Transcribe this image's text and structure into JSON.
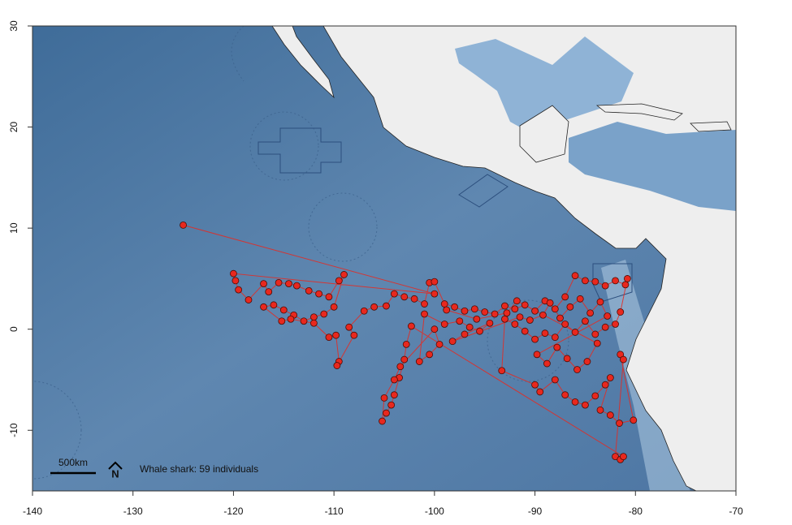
{
  "chart_data": {
    "type": "scatter",
    "xlim": [
      -140,
      -70
    ],
    "ylim": [
      -16,
      30
    ],
    "xticks": [
      -140,
      -130,
      -120,
      -110,
      -100,
      -90,
      -80,
      -70
    ],
    "yticks": [
      -10,
      0,
      10,
      20,
      30
    ],
    "annotations": {
      "scale": "500km",
      "north": "N",
      "label": "Whale shark: 59 individuals"
    },
    "series": [
      {
        "color": "#e8281e",
        "line": true,
        "x": [
          -125,
          -100,
          -120,
          -119.8,
          -119.5,
          -118.5,
          -117,
          -116.5,
          -115.5,
          -114.5,
          -113.7,
          -112.5,
          -111.5,
          -110.5,
          -109.5,
          -109,
          -110,
          -111,
          -112,
          -113,
          -114,
          -115,
          -116,
          -117,
          -115.2,
          -114.3,
          -112,
          -110.5,
          -109.8,
          -109.5,
          -109.7,
          -108,
          -108.5,
          -107,
          -106,
          -104.8,
          -104,
          -103,
          -102,
          -101,
          -100.5,
          -100,
          -99,
          -98,
          -97,
          -96,
          -95,
          -94,
          -93,
          -92,
          -91,
          -90,
          -89,
          -88,
          -87,
          -86,
          -85,
          -84,
          -83,
          -82,
          -81,
          -80.8,
          -81.5,
          -82,
          -83,
          -84,
          -85,
          -86,
          -87,
          -88,
          -89,
          -90,
          -91,
          -92,
          -93,
          -93.3,
          -90,
          -89.5,
          -88,
          -87,
          -86,
          -85,
          -84,
          -83,
          -82.5,
          -83.5,
          -82.5,
          -81.6,
          -80.2,
          -81.5,
          -81.2,
          -82,
          -81.5,
          -81.2,
          -102.3,
          -102.8,
          -103,
          -103.5,
          -104,
          -104.3,
          -104.8,
          -105.2,
          -105,
          -104,
          -103.4,
          -100,
          -99.5,
          -100.5,
          -101.5,
          -101,
          -99,
          -97.5,
          -96.5,
          -95.5,
          -94.5,
          -97,
          -98.2,
          -91.5,
          -90.5,
          -89.2,
          -88.5,
          -87.5,
          -86.5,
          -85.5,
          -84.5,
          -83.5,
          -82.8,
          -89.8,
          -88.8,
          -87.8,
          -86.8,
          -85.8,
          -84.8,
          -83.8,
          -91.8,
          -92.8,
          -95.8,
          -98.8
        ],
        "y": [
          10.3,
          3.5,
          5.5,
          4.8,
          3.9,
          2.9,
          4.5,
          3.7,
          4.6,
          4.5,
          4.3,
          3.8,
          3.5,
          3.2,
          4.8,
          5.4,
          2.2,
          1.5,
          1.2,
          0.8,
          1.4,
          1.9,
          2.4,
          2.2,
          0.8,
          1.0,
          0.6,
          -0.8,
          -0.6,
          -3.2,
          -3.6,
          -0.6,
          0.2,
          1.8,
          2.2,
          2.3,
          3.5,
          3.2,
          3.0,
          2.5,
          4.6,
          4.7,
          2.5,
          2.2,
          1.8,
          2.0,
          1.7,
          1.5,
          2.3,
          2.0,
          2.4,
          1.8,
          2.8,
          2.0,
          3.2,
          5.3,
          4.8,
          4.7,
          4.3,
          4.8,
          4.4,
          5.0,
          1.7,
          0.5,
          0.2,
          -0.5,
          0.8,
          -0.3,
          0.5,
          -0.8,
          -0.4,
          -1.0,
          -0.2,
          0.5,
          1.0,
          -4.1,
          -5.5,
          -6.2,
          -5.0,
          -6.5,
          -7.2,
          -7.5,
          -6.6,
          -5.5,
          -4.8,
          -8.0,
          -8.5,
          -9.3,
          -9.0,
          -2.5,
          -3.0,
          -12.6,
          -12.9,
          -12.6,
          0.3,
          -1.5,
          -3.0,
          -4.8,
          -6.5,
          -7.5,
          -8.3,
          -9.1,
          -6.8,
          -5.0,
          -3.7,
          0.0,
          -1.5,
          -2.5,
          -3.2,
          1.5,
          0.5,
          0.8,
          0.2,
          -0.2,
          0.6,
          -0.5,
          -1.2,
          1.2,
          0.9,
          1.4,
          2.6,
          1.1,
          2.2,
          3.0,
          1.6,
          2.7,
          1.3,
          -2.5,
          -3.4,
          -1.8,
          -2.9,
          -4.0,
          -3.2,
          -1.4,
          2.8,
          1.6,
          1.0,
          1.9
        ]
      }
    ]
  }
}
